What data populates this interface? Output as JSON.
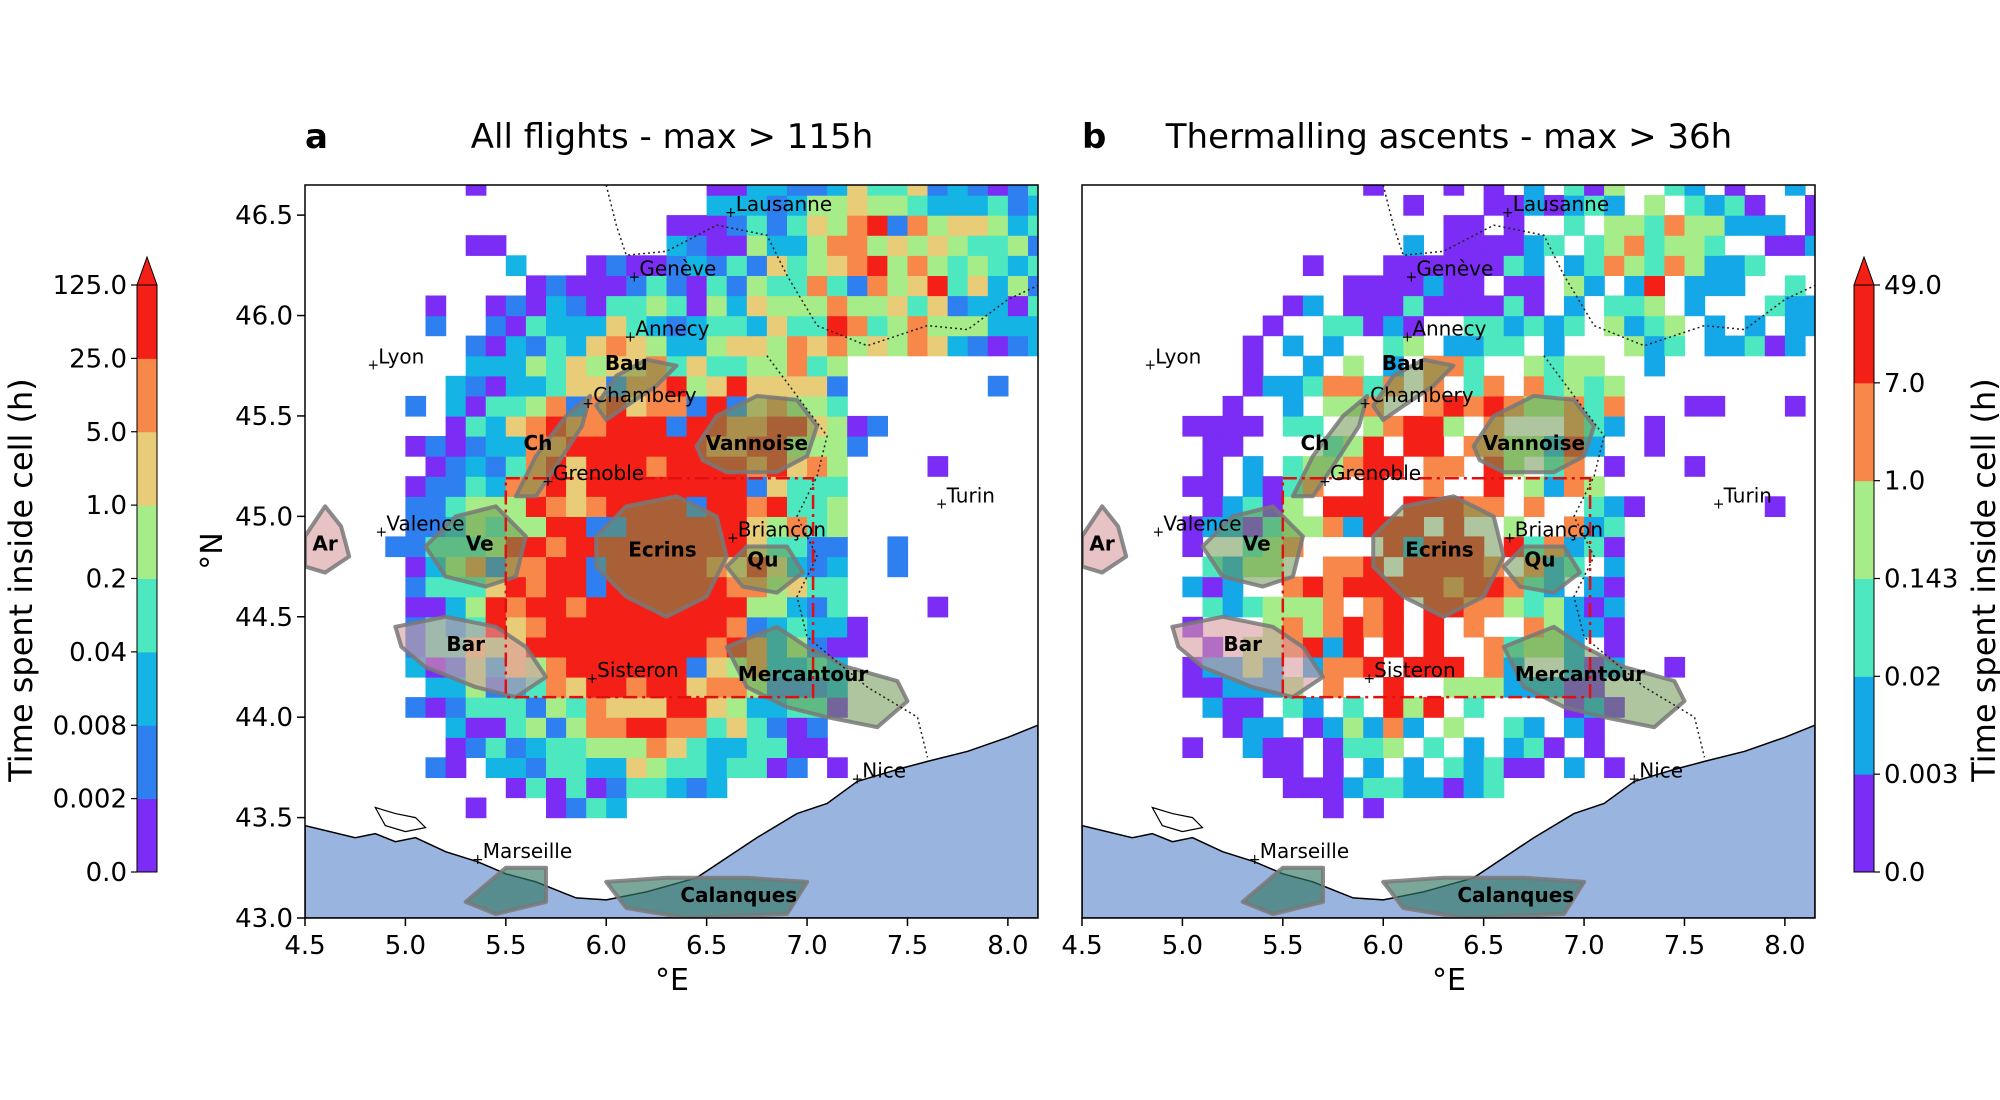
{
  "figure": {
    "xlabel": "°E",
    "ylabel": "°N",
    "xticks": [
      "4.5",
      "5.0",
      "5.5",
      "6.0",
      "6.5",
      "7.0",
      "7.5",
      "8.0"
    ],
    "yticks": [
      "46.5",
      "46.0",
      "45.5",
      "45.0",
      "44.5",
      "44.0",
      "43.5",
      "43.0"
    ],
    "xlim": [
      4.5,
      8.15
    ],
    "ylim": [
      43.0,
      46.65
    ]
  },
  "panels": [
    {
      "letter": "a",
      "title": "All flights -  max > 115h",
      "colorbar": {
        "label": "Time spent inside cell (h)",
        "ticks": [
          "0.0",
          "0.002",
          "0.008",
          "0.04",
          "0.2",
          "1.0",
          "5.0",
          "25.0",
          "125.0"
        ],
        "colors": [
          "#7b2cf5",
          "#2e7ff0",
          "#14b4e4",
          "#4de8c0",
          "#a6ec88",
          "#e8cc78",
          "#f7884a",
          "#f42018"
        ]
      }
    },
    {
      "letter": "b",
      "title": "Thermalling ascents -  max > 36h",
      "colorbar": {
        "label": "Time spent inside cell (h)",
        "ticks": [
          "0.0",
          "0.003",
          "0.02",
          "0.143",
          "1.0",
          "7.0",
          "49.0"
        ],
        "colors": [
          "#7b2cf5",
          "#14a8e8",
          "#4de8c0",
          "#a6ec88",
          "#f7884a",
          "#f42018"
        ]
      }
    }
  ],
  "cities": [
    {
      "name": "Lausanne",
      "lon": 6.63,
      "lat": 46.52
    },
    {
      "name": "Genève",
      "lon": 6.15,
      "lat": 46.2
    },
    {
      "name": "Annecy",
      "lon": 6.13,
      "lat": 45.9
    },
    {
      "name": "Lyon",
      "lon": 4.85,
      "lat": 45.76
    },
    {
      "name": "Chambery",
      "lon": 5.92,
      "lat": 45.57
    },
    {
      "name": "Grenoble",
      "lon": 5.72,
      "lat": 45.18
    },
    {
      "name": "Turin",
      "lon": 7.68,
      "lat": 45.07
    },
    {
      "name": "Valence",
      "lon": 4.89,
      "lat": 44.93
    },
    {
      "name": "Briançon",
      "lon": 6.64,
      "lat": 44.9
    },
    {
      "name": "Sisteron",
      "lon": 5.94,
      "lat": 44.2
    },
    {
      "name": "Nice",
      "lon": 7.26,
      "lat": 43.7
    },
    {
      "name": "Marseille",
      "lon": 5.37,
      "lat": 43.3
    }
  ],
  "regions": [
    {
      "name": "Bau",
      "lon": 6.1,
      "lat": 45.73
    },
    {
      "name": "Vannoise",
      "lon": 6.75,
      "lat": 45.33
    },
    {
      "name": "Ch",
      "lon": 5.66,
      "lat": 45.33
    },
    {
      "name": "Ecrins",
      "lon": 6.28,
      "lat": 44.8
    },
    {
      "name": "Qu",
      "lon": 6.78,
      "lat": 44.75
    },
    {
      "name": "Ar",
      "lon": 4.6,
      "lat": 44.83
    },
    {
      "name": "Ve",
      "lon": 5.37,
      "lat": 44.83
    },
    {
      "name": "Bar",
      "lon": 5.3,
      "lat": 44.33
    },
    {
      "name": "Mercantour",
      "lon": 6.98,
      "lat": 44.18
    },
    {
      "name": "Calanques",
      "lon": 6.66,
      "lat": 43.08
    }
  ],
  "study_box": {
    "lon": [
      5.5,
      7.03
    ],
    "lat": [
      44.1,
      45.19
    ]
  }
}
